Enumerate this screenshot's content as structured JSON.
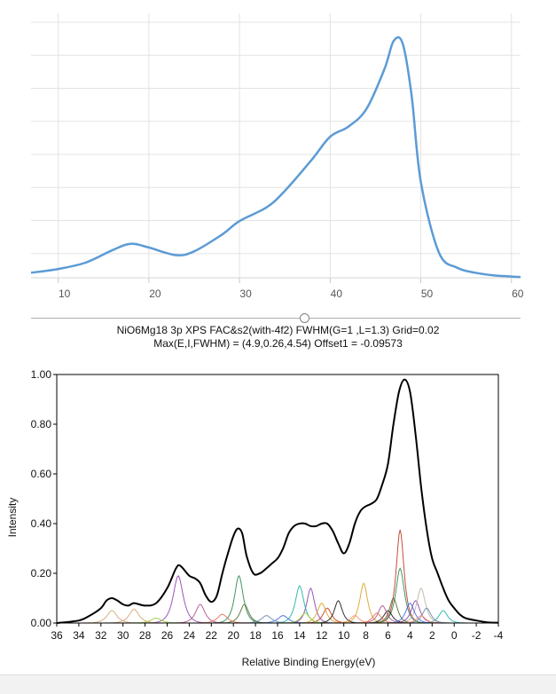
{
  "chart_data": [
    {
      "type": "line",
      "title": "",
      "xlabel": "",
      "ylabel": "",
      "xlim": [
        7,
        61
      ],
      "ylim": [
        0,
        1.05
      ],
      "grid": true,
      "xticks": [
        "10",
        "20",
        "30",
        "40",
        "50",
        "60"
      ],
      "line_color": "#5b9bd5",
      "x": [
        7,
        10,
        13,
        16,
        18,
        20,
        23,
        25,
        28,
        30,
        33,
        35,
        38,
        40,
        42,
        44,
        46,
        47,
        48,
        49,
        50,
        52,
        54,
        56,
        58,
        60,
        61
      ],
      "y": [
        0.02,
        0.035,
        0.06,
        0.11,
        0.135,
        0.12,
        0.09,
        0.105,
        0.17,
        0.225,
        0.28,
        0.345,
        0.47,
        0.56,
        0.6,
        0.67,
        0.83,
        0.94,
        0.93,
        0.72,
        0.38,
        0.1,
        0.04,
        0.02,
        0.01,
        0.005,
        0.003
      ]
    },
    {
      "type": "line",
      "title": "NiO6Mg18 3p XPS FAC&s2(with-4f2) FWHM(G=1 ,L=1.3) Grid=0.02",
      "subtitle": "Max(E,I,FWHM) = (4.9,0.26,4.54) Offset1 = -0.09573",
      "xlabel": "Relative Binding Energy(eV)",
      "ylabel": "Intensity",
      "xlim": [
        36,
        -4
      ],
      "ylim": [
        0,
        1.0
      ],
      "xticks": [
        "36",
        "34",
        "32",
        "30",
        "28",
        "26",
        "24",
        "22",
        "20",
        "18",
        "16",
        "14",
        "12",
        "10",
        "8",
        "6",
        "4",
        "2",
        "0",
        "-2",
        "-4"
      ],
      "yticks": [
        "0.00",
        "0.20",
        "0.40",
        "0.60",
        "0.80",
        "1.00"
      ],
      "series": [
        {
          "name": "total",
          "color": "#000000",
          "x": [
            36,
            34,
            33,
            32,
            31.5,
            31,
            30.5,
            30,
            29.5,
            29,
            28,
            27,
            26,
            25.2,
            24.8,
            24,
            23.5,
            23,
            22.5,
            22,
            21.5,
            21,
            20.5,
            20,
            19.6,
            19.2,
            18.8,
            18.2,
            17.6,
            17,
            16.5,
            16,
            15.5,
            15,
            14.5,
            14,
            13.5,
            13,
            12.5,
            12,
            11.5,
            11,
            10.5,
            10,
            9.5,
            9,
            8.5,
            8,
            7.5,
            7,
            6.5,
            6,
            5.5,
            5,
            4.5,
            4,
            3.5,
            3,
            2.5,
            2,
            1.5,
            1,
            0.5,
            0,
            -0.5,
            -1,
            -2,
            -3,
            -4
          ],
          "y": [
            0.0,
            0.01,
            0.03,
            0.06,
            0.09,
            0.1,
            0.09,
            0.075,
            0.07,
            0.08,
            0.07,
            0.08,
            0.14,
            0.22,
            0.23,
            0.19,
            0.18,
            0.16,
            0.11,
            0.085,
            0.11,
            0.2,
            0.28,
            0.35,
            0.38,
            0.36,
            0.27,
            0.2,
            0.2,
            0.22,
            0.24,
            0.26,
            0.3,
            0.36,
            0.39,
            0.4,
            0.4,
            0.39,
            0.39,
            0.4,
            0.4,
            0.37,
            0.32,
            0.28,
            0.32,
            0.4,
            0.45,
            0.47,
            0.48,
            0.5,
            0.56,
            0.64,
            0.8,
            0.93,
            0.98,
            0.93,
            0.76,
            0.55,
            0.38,
            0.26,
            0.2,
            0.14,
            0.09,
            0.06,
            0.035,
            0.02,
            0.01,
            0.003,
            0.001
          ]
        }
      ],
      "components": [
        {
          "color": "#c23b22",
          "peaks": [
            [
              4.9,
              0.375,
              0.55
            ],
            [
              11.5,
              0.06,
              0.6
            ]
          ]
        },
        {
          "color": "#2e8b57",
          "peaks": [
            [
              4.9,
              0.22,
              0.6
            ],
            [
              19.5,
              0.19,
              0.6
            ]
          ]
        },
        {
          "color": "#8e44ad",
          "peaks": [
            [
              25,
              0.19,
              0.7
            ],
            [
              13,
              0.14,
              0.55
            ],
            [
              3.5,
              0.09,
              0.6
            ]
          ]
        },
        {
          "color": "#20b2aa",
          "peaks": [
            [
              14,
              0.15,
              0.6
            ],
            [
              1,
              0.05,
              0.6
            ]
          ]
        },
        {
          "color": "#daa520",
          "peaks": [
            [
              8.2,
              0.16,
              0.55
            ],
            [
              12,
              0.08,
              0.6
            ]
          ]
        },
        {
          "color": "#bdb5a5",
          "peaks": [
            [
              3,
              0.14,
              0.6
            ]
          ]
        },
        {
          "color": "#1a1a1a",
          "peaks": [
            [
              10.5,
              0.09,
              0.55
            ],
            [
              6,
              0.05,
              0.6
            ]
          ]
        },
        {
          "color": "#556b2f",
          "peaks": [
            [
              19,
              0.075,
              0.6
            ],
            [
              5.5,
              0.1,
              0.55
            ]
          ]
        },
        {
          "color": "#d4a574",
          "peaks": [
            [
              31,
              0.05,
              0.7
            ],
            [
              29,
              0.055,
              0.7
            ]
          ]
        },
        {
          "color": "#b0508a",
          "peaks": [
            [
              23,
              0.075,
              0.65
            ],
            [
              6.5,
              0.07,
              0.6
            ]
          ]
        },
        {
          "color": "#4169e1",
          "peaks": [
            [
              4,
              0.08,
              0.6
            ],
            [
              15.5,
              0.03,
              0.7
            ]
          ]
        },
        {
          "color": "#e07050",
          "peaks": [
            [
              7,
              0.04,
              0.6
            ],
            [
              21,
              0.035,
              0.7
            ]
          ]
        },
        {
          "color": "#6a8caf",
          "peaks": [
            [
              2.5,
              0.06,
              0.6
            ],
            [
              17,
              0.03,
              0.7
            ]
          ]
        },
        {
          "color": "#9acd32",
          "peaks": [
            [
              13.5,
              0.04,
              0.6
            ],
            [
              27,
              0.02,
              0.7
            ]
          ]
        },
        {
          "color": "#ff8c69",
          "peaks": [
            [
              9,
              0.03,
              0.6
            ],
            [
              3,
              0.03,
              0.6
            ]
          ]
        }
      ]
    }
  ]
}
